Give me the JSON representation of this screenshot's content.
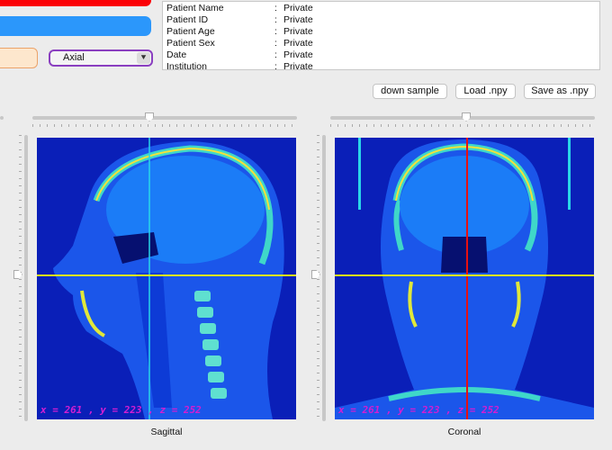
{
  "patient_info": [
    {
      "key": "Patient Name",
      "value": "Private"
    },
    {
      "key": "Patient ID",
      "value": "Private"
    },
    {
      "key": "Patient Age",
      "value": "Private"
    },
    {
      "key": "Patient Sex",
      "value": "Private"
    },
    {
      "key": "Date",
      "value": "Private"
    },
    {
      "key": "Institution",
      "value": "Private"
    }
  ],
  "info_separator": ":",
  "view_select": {
    "value": "Axial"
  },
  "buttons": {
    "down_sample": "down sample",
    "load_npy": "Load .npy",
    "save_npy": "Save as .npy"
  },
  "views": {
    "sagittal": {
      "caption": "Sagittal",
      "coords": "x = 261 , y = 223 , z = 252"
    },
    "coronal": {
      "caption": "Coronal",
      "coords": "x = 261 , y = 223 , z = 252"
    }
  },
  "colors": {
    "crosshair_horizontal": "#e8e800",
    "crosshair_sagittal": "#29d6e8",
    "crosshair_coronal": "#e81010",
    "coords_text": "#d21ed2",
    "background_scan": "#0a1fb8"
  }
}
